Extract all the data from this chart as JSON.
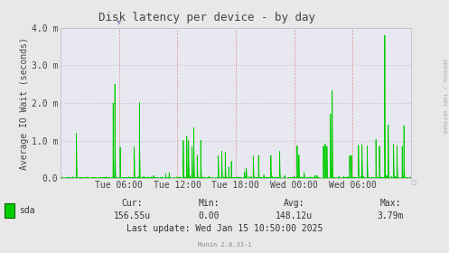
{
  "title": "Disk latency per device - by day",
  "ylabel": "Average IO Wait (seconds)",
  "background_color": "#e8e8e8",
  "plot_bg_color": "#e8e8f0",
  "line_color": "#00cc00",
  "ylim": [
    0,
    0.004
  ],
  "yticks": [
    0.0,
    0.001,
    0.002,
    0.003,
    0.004
  ],
  "ytick_labels": [
    "0.0",
    "1.0 m",
    "2.0 m",
    "3.0 m",
    "4.0 m"
  ],
  "xtick_labels": [
    "Tue 06:00",
    "Tue 12:00",
    "Tue 18:00",
    "Wed 00:00",
    "Wed 06:00"
  ],
  "legend_label": "sda",
  "legend_color": "#00cc00",
  "cur_val": "156.55u",
  "min_val": "0.00",
  "avg_val": "148.12u",
  "max_val": "3.79m",
  "last_update": "Wed Jan 15 10:50:00 2025",
  "munin_version": "Munin 2.0.33-1",
  "right_label": "RRDTOOL / TOBI OETIKER",
  "title_fontsize": 9,
  "label_fontsize": 7,
  "stats_fontsize": 7
}
